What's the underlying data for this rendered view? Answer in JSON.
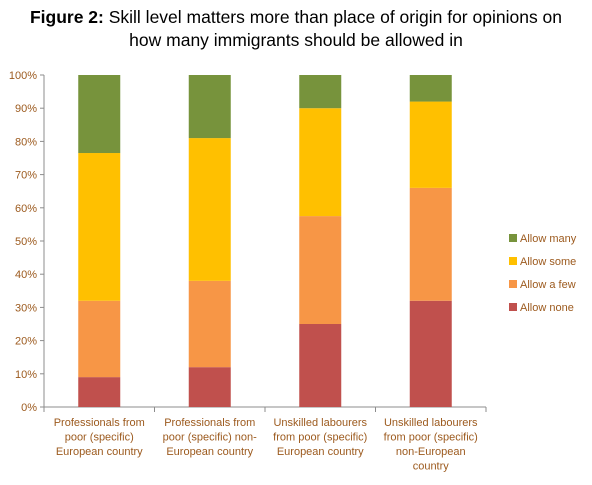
{
  "title": {
    "bold_part": "Figure 2:",
    "rest_line1": "Skill level matters more than place of origin for opinions on",
    "line2": "how many immigrants should be allowed in"
  },
  "chart_data": {
    "type": "bar",
    "stacked": true,
    "percent_stacked": true,
    "categories": [
      [
        "Professionals from",
        "poor (specific)",
        "European country"
      ],
      [
        "Professionals from",
        "poor (specific) non-",
        "European country"
      ],
      [
        "Unskilled labourers",
        "from poor (specific)",
        "European country"
      ],
      [
        "Unskilled labourers",
        "from poor (specific)",
        "non-European",
        "country"
      ]
    ],
    "series": [
      {
        "name": "Allow none",
        "color": "#c0504d",
        "values": [
          9,
          12,
          25,
          32
        ]
      },
      {
        "name": "Allow a few",
        "color": "#f79646",
        "values": [
          23,
          26,
          32.5,
          34
        ]
      },
      {
        "name": "Allow some",
        "color": "#ffc000",
        "values": [
          44.5,
          43,
          32.5,
          26
        ]
      },
      {
        "name": "Allow many",
        "color": "#77933c",
        "values": [
          23.5,
          19,
          10,
          8
        ]
      }
    ],
    "ylim": [
      0,
      100
    ],
    "yticks": [
      "0%",
      "10%",
      "20%",
      "30%",
      "40%",
      "50%",
      "60%",
      "70%",
      "80%",
      "90%",
      "100%"
    ],
    "legend_order": [
      "Allow many",
      "Allow some",
      "Allow a few",
      "Allow none"
    ],
    "legend_position": "right",
    "grid": false,
    "xlabel": "",
    "ylabel": ""
  }
}
